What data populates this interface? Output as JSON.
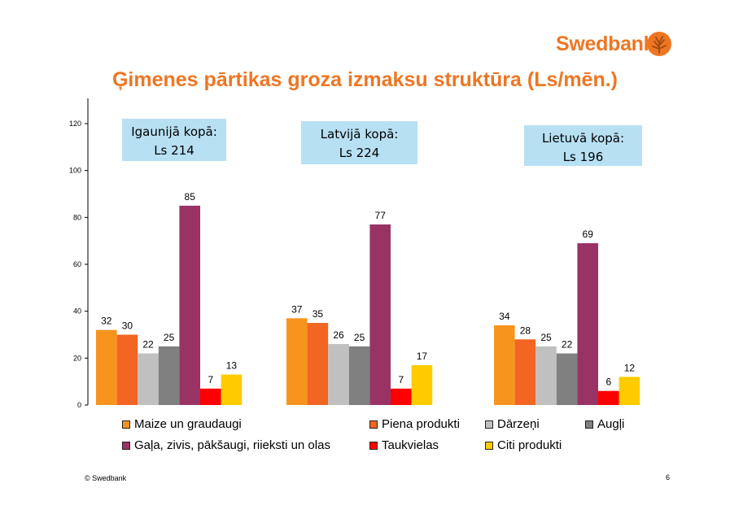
{
  "brand": {
    "name": "Swedbank",
    "color": "#ee7623"
  },
  "title": "Ģimenes pārtikas groza izmaksu struktūra (Ls/mēn.)",
  "footer": {
    "copyright": "© Swedbank",
    "page_number": "6"
  },
  "chart_data": {
    "type": "bar",
    "ylim": [
      0,
      130
    ],
    "yticks": [
      0,
      20,
      40,
      60,
      80,
      100,
      120
    ],
    "grid": false,
    "legend_position": "bottom",
    "groups": [
      {
        "callout_line1": "Igaunijā kopā:",
        "callout_line2": "Ls 214",
        "values": [
          32,
          30,
          22,
          25,
          85,
          7,
          13
        ]
      },
      {
        "callout_line1": "Latvijā kopā:",
        "callout_line2": "Ls 224",
        "values": [
          37,
          35,
          26,
          25,
          77,
          7,
          17
        ]
      },
      {
        "callout_line1": "Lietuvā kopā:",
        "callout_line2": "Ls 196",
        "values": [
          34,
          28,
          25,
          22,
          69,
          6,
          12
        ]
      }
    ],
    "series": [
      {
        "name": "Maize un graudaugi",
        "color": "#f7941d"
      },
      {
        "name": "Piena produkti",
        "color": "#f26522"
      },
      {
        "name": "Dārzeņi",
        "color": "#c0c0c0"
      },
      {
        "name": "Augļi",
        "color": "#808080"
      },
      {
        "name": "Gaļa, zivis, pākšaugi, riieksti un olas",
        "color": "#993366"
      },
      {
        "name": "Taukvielas",
        "color": "#ff0000"
      },
      {
        "name": "Citi produkti",
        "color": "#ffcc00"
      }
    ],
    "callout_color": "#b7e0f3"
  }
}
